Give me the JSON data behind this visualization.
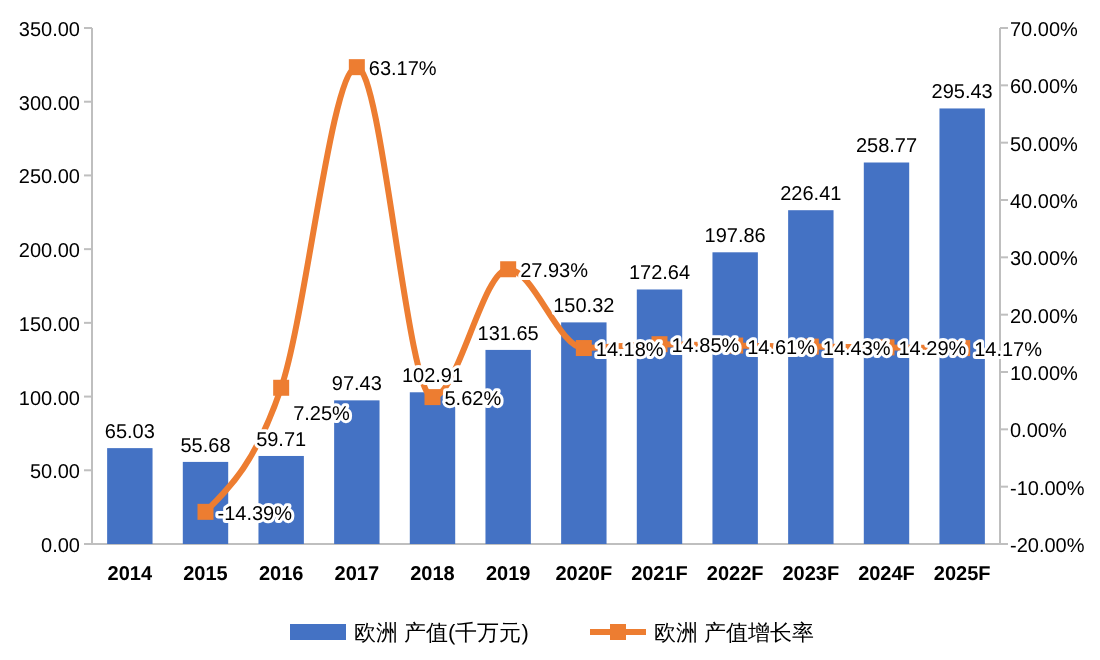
{
  "chart_data": {
    "type": "bar",
    "categories": [
      "2014",
      "2015",
      "2016",
      "2017",
      "2018",
      "2019",
      "2020F",
      "2021F",
      "2022F",
      "2023F",
      "2024F",
      "2025F"
    ],
    "series": [
      {
        "name": "欧洲 产值(千万元)",
        "color": "#4472c4",
        "values": [
          65.03,
          55.68,
          59.71,
          97.43,
          102.91,
          131.65,
          150.32,
          172.64,
          197.86,
          226.41,
          258.77,
          295.43
        ],
        "value_labels": [
          "65.03",
          "55.68",
          "59.71",
          "97.43",
          "102.91",
          "131.65",
          "150.32",
          "172.64",
          "197.86",
          "226.41",
          "258.77",
          "295.43"
        ]
      },
      {
        "name": "欧洲 产值增长率",
        "type": "line",
        "axis": "y2",
        "color": "#ed7d31",
        "marker": "square",
        "values": [
          null,
          -14.39,
          7.25,
          63.17,
          5.62,
          27.93,
          14.18,
          14.85,
          14.61,
          14.43,
          14.29,
          14.17
        ],
        "value_labels": [
          null,
          "-14.39%",
          "7.25%",
          "63.17%",
          "5.62%",
          "27.93%",
          "14.18%",
          "14.85%",
          "14.61%",
          "14.43%",
          "14.29%",
          "14.17%"
        ]
      }
    ],
    "ylim": [
      0,
      350
    ],
    "yticks": [
      {
        "value": 0,
        "label": "0.00"
      },
      {
        "value": 50,
        "label": "50.00"
      },
      {
        "value": 100,
        "label": "100.00"
      },
      {
        "value": 150,
        "label": "150.00"
      },
      {
        "value": 200,
        "label": "200.00"
      },
      {
        "value": 250,
        "label": "250.00"
      },
      {
        "value": 300,
        "label": "300.00"
      },
      {
        "value": 350,
        "label": "350.00"
      }
    ],
    "y2lim": [
      -20,
      70
    ],
    "y2ticks": [
      {
        "value": -20,
        "label": "-20.00%"
      },
      {
        "value": -10,
        "label": "-10.00%"
      },
      {
        "value": 0,
        "label": "0.00%"
      },
      {
        "value": 10,
        "label": "10.00%"
      },
      {
        "value": 20,
        "label": "20.00%"
      },
      {
        "value": 30,
        "label": "30.00%"
      },
      {
        "value": 40,
        "label": "40.00%"
      },
      {
        "value": 50,
        "label": "50.00%"
      },
      {
        "value": 60,
        "label": "60.00%"
      },
      {
        "value": 70,
        "label": "70.00%"
      }
    ],
    "legend": "bottom"
  }
}
